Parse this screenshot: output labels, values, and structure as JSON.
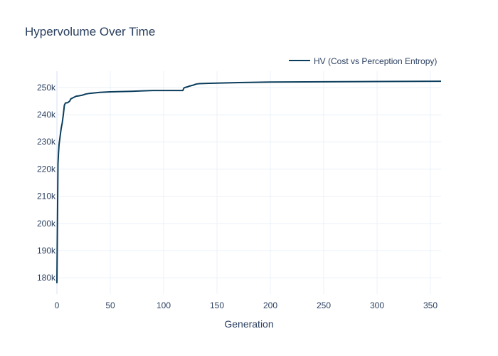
{
  "chart_data": {
    "type": "line",
    "title": "Hypervolume Over Time",
    "xlabel": "Generation",
    "ylabel": "",
    "xlim": [
      0,
      360
    ],
    "ylim": [
      174000,
      256000
    ],
    "x_ticks": [
      0,
      50,
      100,
      150,
      200,
      250,
      300,
      350
    ],
    "x_tick_labels": [
      "0",
      "50",
      "100",
      "150",
      "200",
      "250",
      "300",
      "350"
    ],
    "y_ticks": [
      180000,
      190000,
      200000,
      210000,
      220000,
      230000,
      240000,
      250000
    ],
    "y_tick_labels": [
      "180k",
      "190k",
      "200k",
      "210k",
      "220k",
      "230k",
      "240k",
      "250k"
    ],
    "grid": true,
    "legend_position": "top-right",
    "series": [
      {
        "name": "HV (Cost vs Perception Entropy)",
        "color": "#0b3d5c",
        "x": [
          0,
          1,
          1.5,
          2,
          3,
          4,
          5,
          6,
          7,
          8,
          10,
          12,
          13,
          15,
          18,
          20,
          24,
          27,
          30,
          35,
          40,
          50,
          60,
          70,
          80,
          90,
          100,
          110,
          118,
          119,
          120,
          122,
          124,
          126,
          128,
          130,
          131,
          133,
          140,
          150,
          170,
          200,
          250,
          300,
          360
        ],
        "y": [
          178000,
          222000,
          226000,
          229000,
          232000,
          235000,
          237000,
          240000,
          243500,
          244300,
          244400,
          245000,
          245800,
          246200,
          246800,
          246900,
          247200,
          247600,
          247800,
          248000,
          248200,
          248400,
          248500,
          248600,
          248750,
          248900,
          248900,
          248900,
          248900,
          249800,
          250000,
          250200,
          250500,
          250700,
          250900,
          251200,
          251300,
          251400,
          251500,
          251600,
          251800,
          252000,
          252100,
          252200,
          252300
        ]
      }
    ]
  }
}
